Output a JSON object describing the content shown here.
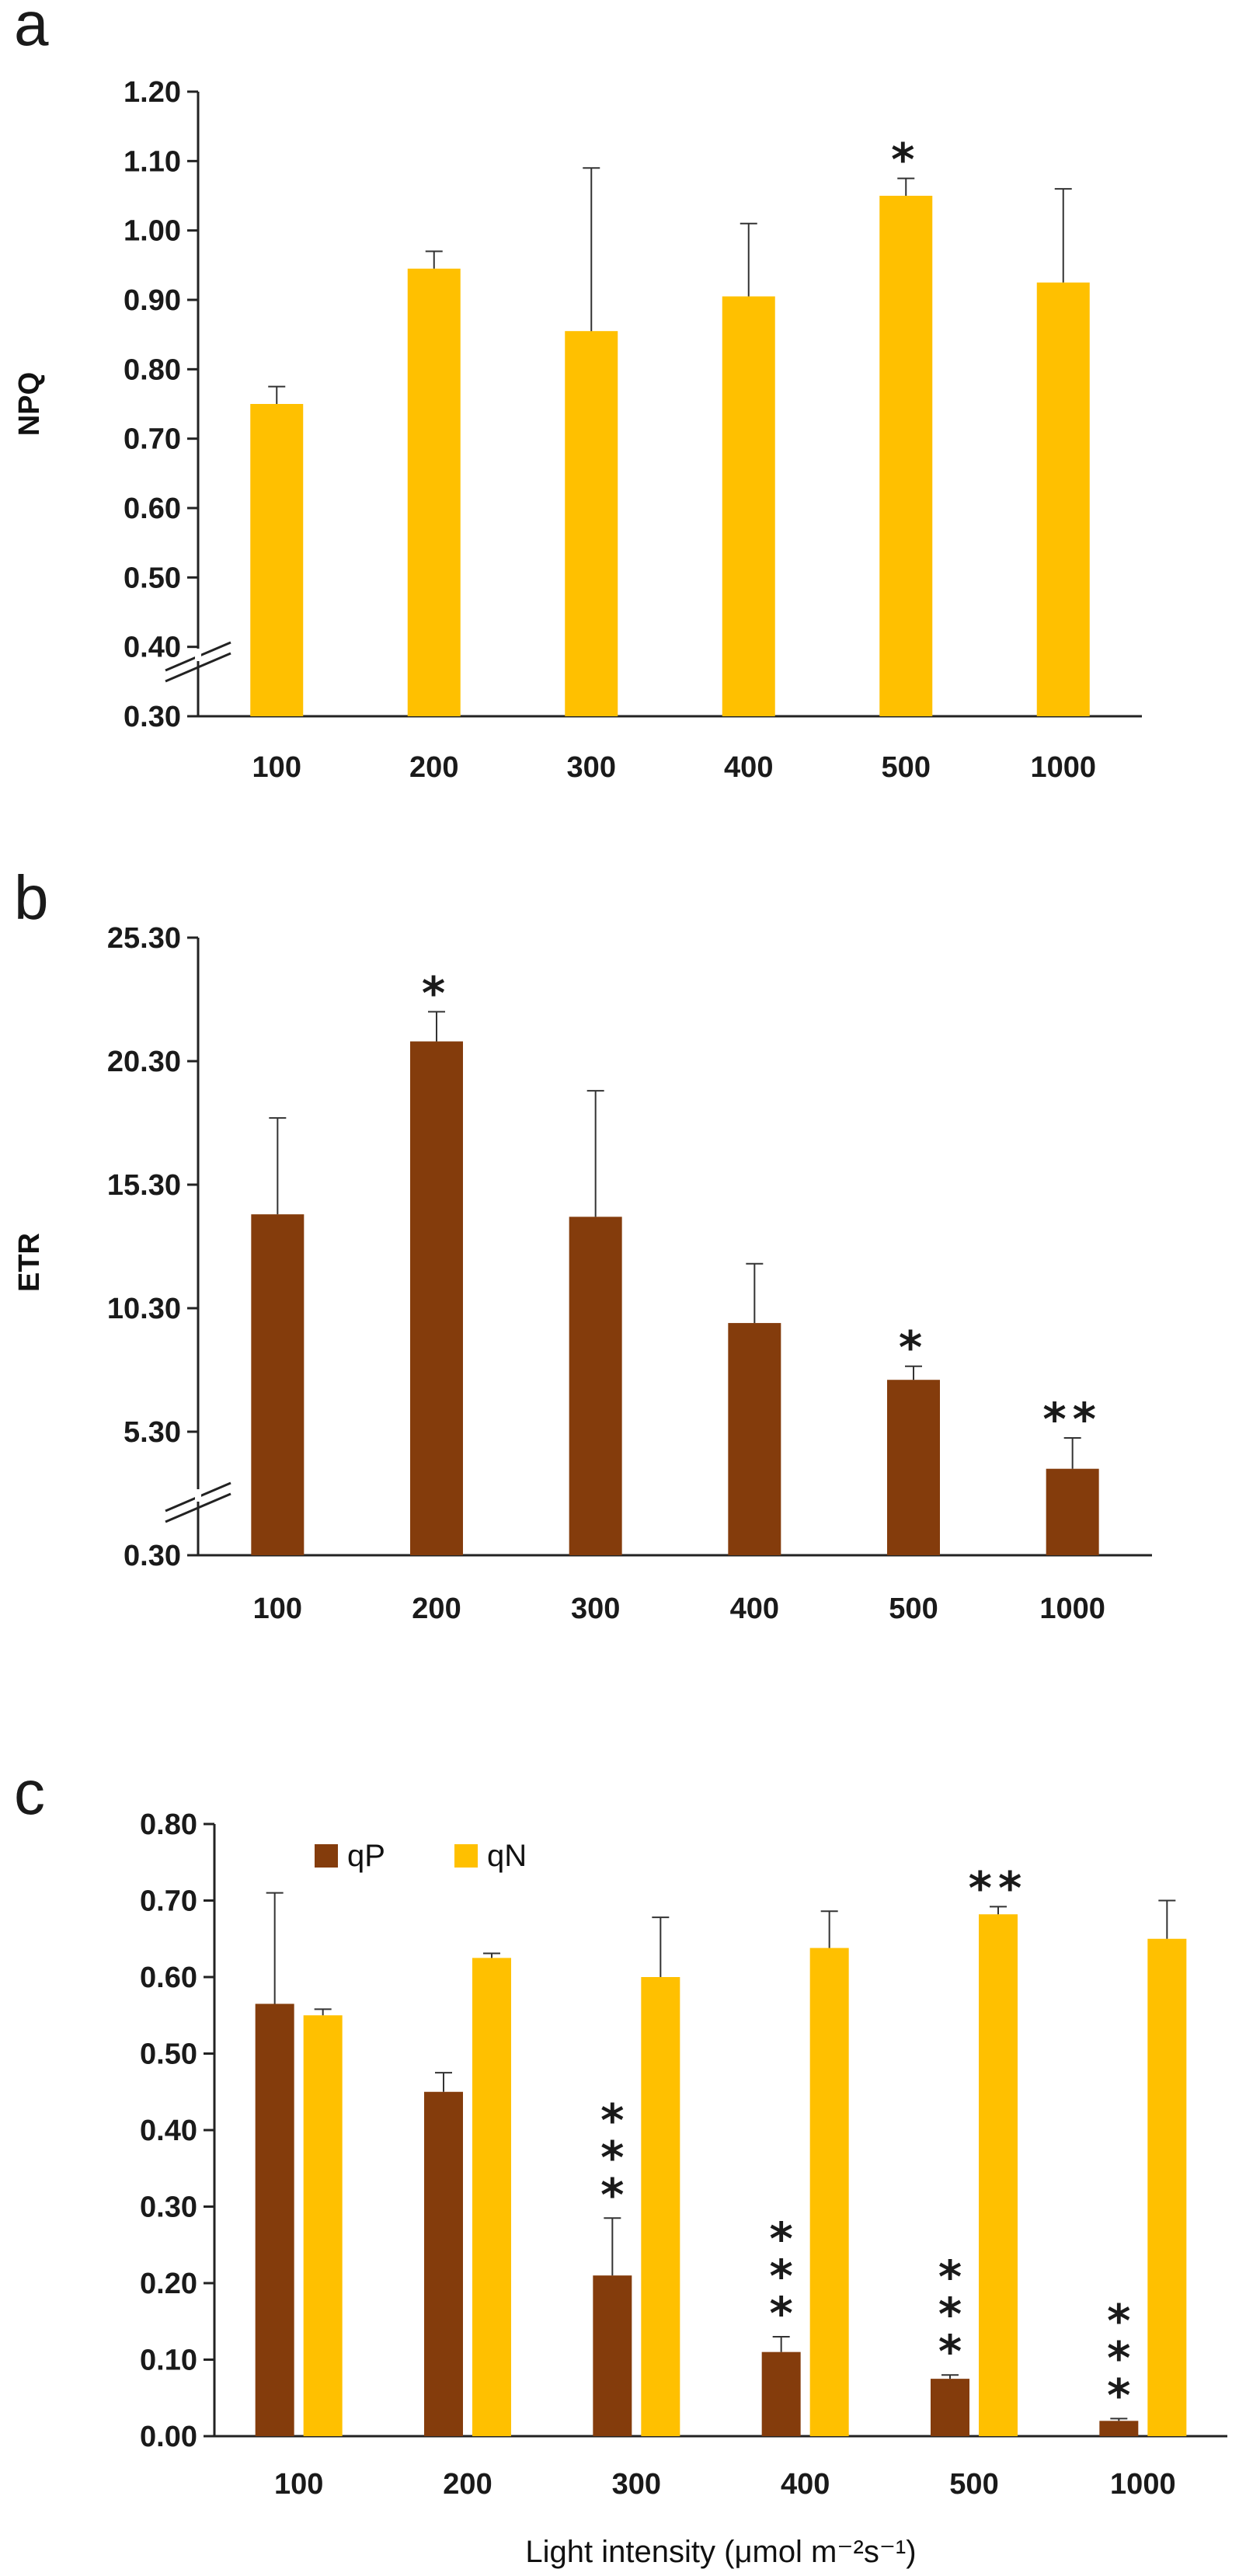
{
  "chart_data": [
    {
      "panel": "a",
      "type": "bar",
      "ylabel": "NPQ",
      "categories": [
        "100",
        "200",
        "300",
        "400",
        "500",
        "1000"
      ],
      "y_ticks": [
        "0.30",
        "0.40",
        "0.50",
        "0.60",
        "0.70",
        "0.80",
        "0.90",
        "1.00",
        "1.10",
        "1.20"
      ],
      "ylim": [
        0.3,
        1.2
      ],
      "axis_break": true,
      "series": [
        {
          "name": "NPQ",
          "color": "#FFC000",
          "values": [
            0.75,
            0.945,
            0.855,
            0.905,
            1.05,
            0.925
          ],
          "errors": [
            0.025,
            0.025,
            0.235,
            0.105,
            0.025,
            0.135
          ],
          "significance": [
            "",
            "",
            "",
            "",
            "*",
            ""
          ]
        }
      ]
    },
    {
      "panel": "b",
      "type": "bar",
      "ylabel": "ETR",
      "categories": [
        "100",
        "200",
        "300",
        "400",
        "500",
        "1000"
      ],
      "y_ticks": [
        "0.30",
        "5.30",
        "10.30",
        "15.30",
        "20.30",
        "25.30"
      ],
      "ylim": [
        0.3,
        25.3
      ],
      "axis_break": true,
      "series": [
        {
          "name": "ETR",
          "color": "#843C0C",
          "values": [
            14.1,
            21.1,
            14.0,
            9.7,
            7.4,
            3.8
          ],
          "errors": [
            3.9,
            1.2,
            5.1,
            2.4,
            0.55,
            1.25
          ],
          "significance": [
            "",
            "*",
            "",
            "",
            "*",
            "**"
          ]
        }
      ]
    },
    {
      "panel": "c",
      "type": "bar",
      "xlabel": "Light intensity (μmol m⁻²s⁻¹)",
      "categories": [
        "100",
        "200",
        "300",
        "400",
        "500",
        "1000"
      ],
      "y_ticks": [
        "0.00",
        "0.10",
        "0.20",
        "0.30",
        "0.40",
        "0.50",
        "0.60",
        "0.70",
        "0.80"
      ],
      "ylim": [
        0.0,
        0.8
      ],
      "legend_position": "top-left",
      "series": [
        {
          "name": "qP",
          "color": "#843C0C",
          "values": [
            0.565,
            0.45,
            0.21,
            0.11,
            0.075,
            0.02
          ],
          "errors": [
            0.145,
            0.025,
            0.075,
            0.02,
            0.005,
            0.003
          ],
          "significance": [
            "",
            "",
            "***",
            "***",
            "***",
            "***"
          ]
        },
        {
          "name": "qN",
          "color": "#FFC000",
          "values": [
            0.55,
            0.625,
            0.6,
            0.638,
            0.682,
            0.65
          ],
          "errors": [
            0.008,
            0.006,
            0.078,
            0.048,
            0.01,
            0.05
          ],
          "significance": [
            "",
            "",
            "",
            "",
            "**",
            ""
          ]
        }
      ]
    }
  ]
}
